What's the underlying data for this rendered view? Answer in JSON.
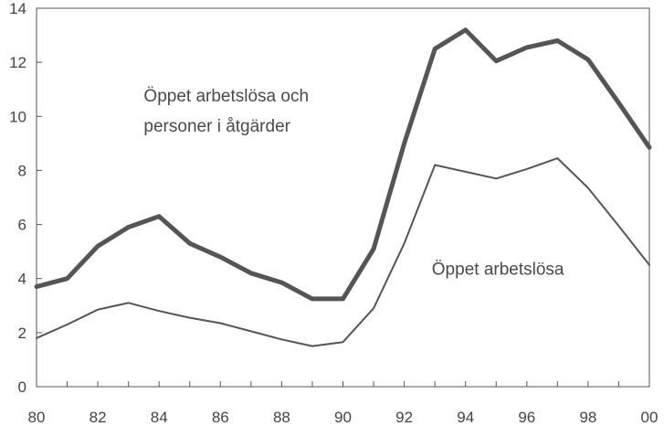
{
  "chart_data": {
    "type": "line",
    "title": "",
    "xlabel": "",
    "ylabel": "",
    "xlim": [
      1980,
      2000
    ],
    "ylim": [
      0,
      14
    ],
    "x_ticks": [
      "80",
      "82",
      "84",
      "86",
      "88",
      "90",
      "92",
      "94",
      "96",
      "98",
      "00"
    ],
    "y_ticks": [
      "0",
      "2",
      "4",
      "6",
      "8",
      "10",
      "12",
      "14"
    ],
    "grid": false,
    "x": [
      1980,
      1981,
      1982,
      1983,
      1984,
      1985,
      1986,
      1987,
      1988,
      1989,
      1990,
      1991,
      1992,
      1993,
      1994,
      1995,
      1996,
      1997,
      1998,
      1999,
      2000
    ],
    "series": [
      {
        "name": "Öppet arbetslösa och personer i åtgärder",
        "name_lines": [
          "Öppet arbetslösa och",
          "personer i åtgärder"
        ],
        "color": "#555555",
        "values": [
          3.7,
          4.0,
          5.2,
          5.9,
          6.3,
          5.3,
          4.8,
          4.2,
          3.85,
          3.25,
          3.25,
          5.1,
          9.0,
          12.5,
          13.2,
          12.05,
          12.55,
          12.8,
          12.1,
          10.5,
          8.85
        ]
      },
      {
        "name": "Öppet arbetslösa",
        "name_lines": [
          "Öppet arbetslösa"
        ],
        "color": "#555555",
        "values": [
          1.8,
          2.3,
          2.85,
          3.1,
          2.8,
          2.55,
          2.35,
          2.05,
          1.75,
          1.5,
          1.65,
          2.9,
          5.3,
          8.2,
          7.95,
          7.7,
          8.05,
          8.45,
          7.35,
          5.95,
          4.5
        ]
      }
    ]
  }
}
